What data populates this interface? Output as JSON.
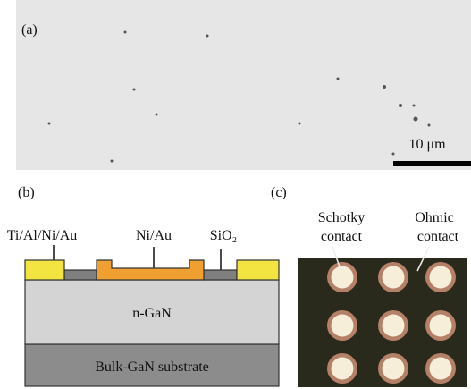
{
  "panel_a": {
    "label": "(a)",
    "scale_bar": "10 μm"
  },
  "panel_b": {
    "label": "(b)",
    "contact_labels": [
      "Ti/Al/Ni/Au",
      "Ni/Au",
      "SiO₂"
    ],
    "layers": [
      "n-GaN",
      "Bulk-GaN substrate"
    ]
  },
  "panel_c": {
    "label": "(c)",
    "schottky": [
      "Schotky",
      "contact"
    ],
    "ohmic": [
      "Ohmic",
      "contact"
    ]
  }
}
